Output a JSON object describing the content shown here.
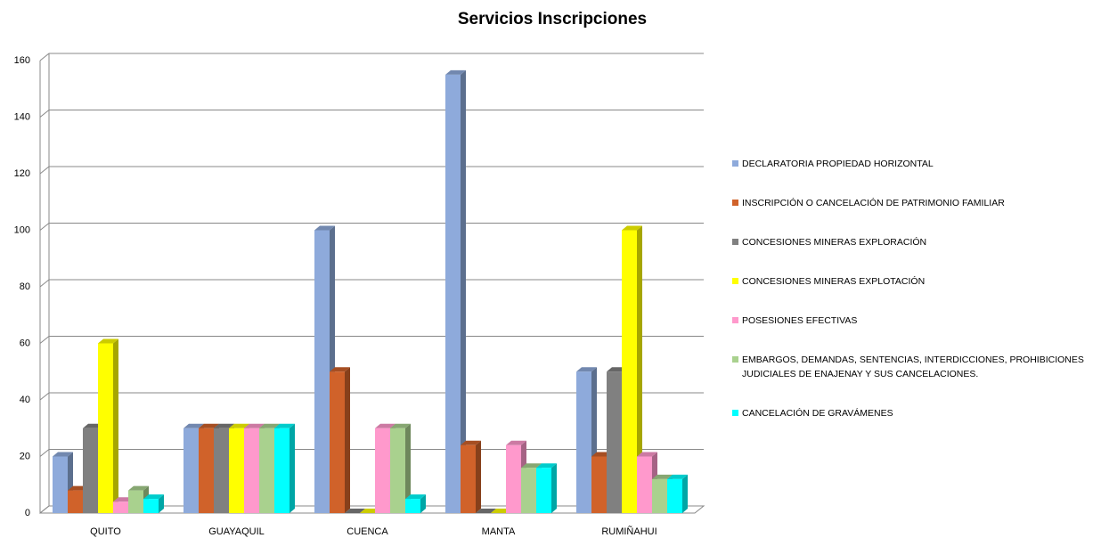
{
  "chart_data": {
    "type": "bar",
    "title": "Servicios Inscripciones",
    "categories": [
      "QUITO",
      "GUAYAQUIL",
      "CUENCA",
      "MANTA",
      "RUMIÑAHUI"
    ],
    "series": [
      {
        "name": "DECLARATORIA PROPIEDAD HORIZONTAL",
        "color": "#8eaadb",
        "values": [
          20,
          30,
          100,
          155,
          50
        ]
      },
      {
        "name": "INSCRIPCIÓN O CANCELACIÓN DE PATRIMONIO FAMILIAR",
        "color": "#d0622a",
        "values": [
          8,
          30,
          50,
          24,
          20
        ]
      },
      {
        "name": "CONCESIONES MINERAS EXPLORACIÓN",
        "color": "#808080",
        "values": [
          30,
          30,
          0,
          0,
          50
        ]
      },
      {
        "name": "CONCESIONES MINERAS EXPLOTACIÓN",
        "color": "#ffff00",
        "values": [
          60,
          30,
          0,
          0,
          100
        ]
      },
      {
        "name": "POSESIONES EFECTIVAS",
        "color": "#ff99cc",
        "values": [
          4,
          30,
          30,
          24,
          20
        ]
      },
      {
        "name": "EMBARGOS, DEMANDAS, SENTENCIAS, INTERDICCIONES, PROHIBICIONES JUDICIALES DE ENAJENAY Y SUS CANCELACIONES.",
        "color": "#a9d18e",
        "values": [
          8,
          30,
          30,
          16,
          12
        ]
      },
      {
        "name": "CANCELACIÓN DE GRAVÁMENES",
        "color": "#00ffff",
        "values": [
          5,
          30,
          5,
          16,
          12
        ]
      }
    ],
    "ylim": [
      0,
      160
    ],
    "yticks": [
      0,
      20,
      40,
      60,
      80,
      100,
      120,
      140,
      160
    ],
    "grid": true,
    "legend": "right"
  }
}
